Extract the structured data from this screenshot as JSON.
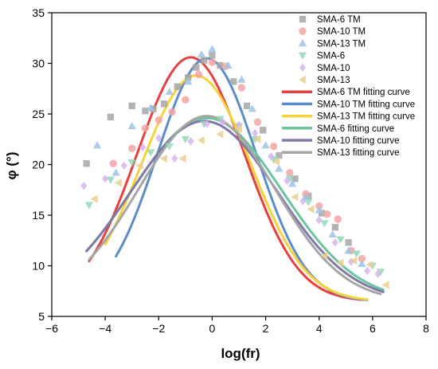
{
  "chart_data": {
    "type": "scatter",
    "xlabel": "log(fr)",
    "ylabel": "φ (°)",
    "xlim": [
      -6,
      8
    ],
    "ylim": [
      5,
      35
    ],
    "xticks": [
      -6,
      -4,
      -2,
      0,
      2,
      4,
      6,
      8
    ],
    "yticks": [
      5,
      10,
      15,
      20,
      25,
      30,
      35
    ],
    "legend_position": "top-right",
    "scatter_series": [
      {
        "name": "SMA-6 TM",
        "marker": "square",
        "color": "#a6a6a6",
        "x": [
          -4.7,
          -3.8,
          -3.0,
          -2.5,
          -2.2,
          -1.8,
          -1.3,
          -0.9,
          -0.6,
          -0.3,
          0.0,
          0.3,
          0.8,
          1.3,
          1.9,
          2.5,
          3.1,
          3.6,
          4.1,
          4.6,
          5.1
        ],
        "y": [
          20.1,
          24.7,
          25.8,
          25.3,
          25.5,
          26.0,
          27.7,
          28.6,
          29.6,
          30.3,
          30.8,
          29.8,
          28.2,
          25.8,
          23.4,
          20.9,
          18.6,
          16.9,
          15.2,
          13.8,
          12.3
        ]
      },
      {
        "name": "SMA-10 TM",
        "marker": "circle",
        "color": "#f4a3a3",
        "x": [
          -3.7,
          -3.0,
          -2.5,
          -2.0,
          -1.5,
          -1.0,
          -0.5,
          0.0,
          0.5,
          1.1,
          1.7,
          2.3,
          2.9,
          3.5,
          4.0,
          4.3,
          4.7,
          5.2,
          5.6
        ],
        "y": [
          20.1,
          21.6,
          23.6,
          24.4,
          25.2,
          26.4,
          28.9,
          30.1,
          29.7,
          27.6,
          24.2,
          21.8,
          19.2,
          17.1,
          15.9,
          15.1,
          14.6,
          11.5,
          10.7
        ]
      },
      {
        "name": "SMA-13 TM",
        "marker": "triangle-up",
        "color": "#9dc3e6",
        "x": [
          -4.3,
          -3.6,
          -3.0,
          -2.3,
          -1.6,
          -0.9,
          -0.4,
          0.0,
          0.6,
          1.1,
          1.5,
          2.0,
          2.5,
          3.0,
          3.5,
          4.0,
          4.5,
          5.1,
          5.6
        ],
        "y": [
          21.9,
          19.2,
          23.8,
          25.6,
          27.2,
          28.2,
          30.9,
          31.4,
          29.8,
          28.4,
          25.5,
          21.9,
          19.6,
          18.1,
          16.8,
          15.5,
          13.1,
          11.5,
          10.2
        ]
      },
      {
        "name": "SMA-6",
        "marker": "triangle-down",
        "color": "#8fd9b6",
        "x": [
          -4.6,
          -3.8,
          -3.0,
          -2.3,
          -1.6,
          -1.0,
          -0.3,
          0.3,
          1.0,
          1.6,
          2.3,
          2.9,
          3.6,
          4.2,
          4.8,
          5.4,
          6.0,
          6.3
        ],
        "y": [
          16.0,
          18.5,
          20.2,
          21.2,
          21.8,
          22.5,
          24.0,
          24.5,
          23.8,
          22.5,
          20.5,
          18.6,
          16.3,
          14.2,
          12.6,
          11.2,
          10.0,
          9.4
        ]
      },
      {
        "name": "SMA-10",
        "marker": "diamond",
        "color": "#d8b4ef",
        "x": [
          -4.8,
          -4.0,
          -3.3,
          -2.6,
          -2.0,
          -1.4,
          -0.8,
          -0.2,
          0.4,
          1.0,
          1.6,
          2.2,
          2.8,
          3.4,
          4.0,
          4.6,
          5.2,
          5.8,
          6.2
        ],
        "y": [
          17.9,
          18.6,
          19.9,
          21.7,
          22.6,
          20.6,
          22.3,
          24.0,
          24.2,
          23.9,
          23.1,
          20.8,
          18.4,
          16.4,
          14.5,
          12.3,
          10.4,
          9.5,
          9.2
        ]
      },
      {
        "name": "SMA-13",
        "marker": "triangle-left",
        "color": "#e8cf8f",
        "x": [
          -4.4,
          -3.5,
          -2.7,
          -1.8,
          -1.1,
          -0.4,
          0.3,
          1.0,
          1.7,
          2.4,
          3.1,
          3.7,
          4.2,
          4.8,
          5.3,
          5.9,
          6.5
        ],
        "y": [
          16.6,
          18.2,
          19.9,
          20.6,
          20.6,
          22.4,
          23.0,
          23.5,
          22.5,
          20.3,
          16.8,
          15.6,
          11.0,
          10.3,
          10.5,
          10.1,
          8.1
        ]
      }
    ],
    "curve_series": [
      {
        "name": "SMA-6 TM fitting curve",
        "color": "#e8403f",
        "peak_x": -0.8,
        "peak_y": 30.6,
        "width": 2.0,
        "x_range": [
          -4.6,
          5.6
        ]
      },
      {
        "name": "SMA-10 TM fitting curve",
        "color": "#5b8ccc",
        "peak_x": -0.2,
        "peak_y": 30.5,
        "width": 1.85,
        "x_range": [
          -3.6,
          5.8
        ]
      },
      {
        "name": "SMA-13 TM fitting curve",
        "color": "#f7d238",
        "peak_x": -0.6,
        "peak_y": 28.8,
        "width": 2.05,
        "x_range": [
          -4.0,
          5.8
        ]
      },
      {
        "name": "SMA-6 fitting curve",
        "color": "#6dc49d",
        "peak_x": -0.2,
        "peak_y": 24.6,
        "width": 2.8,
        "x_range": [
          -4.7,
          6.4
        ]
      },
      {
        "name": "SMA-10 fitting curve",
        "color": "#7f7aa8",
        "peak_x": -0.3,
        "peak_y": 24.3,
        "width": 2.75,
        "x_range": [
          -4.7,
          6.4
        ]
      },
      {
        "name": "SMA-13 fitting curve",
        "color": "#a6a6a6",
        "peak_x": -0.2,
        "peak_y": 24.8,
        "width": 2.55,
        "x_range": [
          -4.6,
          6.3
        ]
      }
    ]
  }
}
